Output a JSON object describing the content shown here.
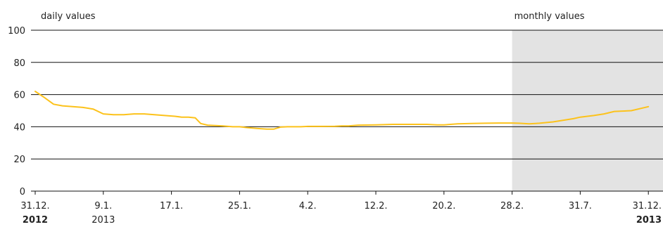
{
  "chart_data": {
    "type": "line",
    "title": "",
    "xlabel": "",
    "ylabel": "",
    "ylim": [
      0,
      100
    ],
    "y_ticks": [
      "0",
      "20",
      "40",
      "60",
      "80",
      "100"
    ],
    "x_ticks": [
      {
        "line1": "31.12.",
        "line2": "2012",
        "bold2": true
      },
      {
        "line1": "9.1.",
        "line2": "2013",
        "bold2": false
      },
      {
        "line1": "17.1.",
        "line2": "",
        "bold2": false
      },
      {
        "line1": "25.1.",
        "line2": "",
        "bold2": false
      },
      {
        "line1": "4.2.",
        "line2": "",
        "bold2": false
      },
      {
        "line1": "12.2.",
        "line2": "",
        "bold2": false
      },
      {
        "line1": "20.2.",
        "line2": "",
        "bold2": false
      },
      {
        "line1": "28.2.",
        "line2": "",
        "bold2": false
      },
      {
        "line1": "31.7.",
        "line2": "",
        "bold2": false
      },
      {
        "line1": "31.12.",
        "line2": "2013",
        "bold2": true
      }
    ],
    "regions": {
      "daily_label": "daily values",
      "monthly_label": "monthly values",
      "monthly_start_tick_index": 7,
      "monthly_shade_color": "#e3e3e3"
    },
    "grid": true,
    "legend": "none",
    "series": [
      {
        "color": "#fcc21b",
        "points": [
          [
            0.0,
            62
          ],
          [
            0.14,
            58
          ],
          [
            0.27,
            54
          ],
          [
            0.4,
            53
          ],
          [
            0.55,
            52.5
          ],
          [
            0.7,
            52
          ],
          [
            0.85,
            51
          ],
          [
            1.0,
            48
          ],
          [
            1.15,
            47.5
          ],
          [
            1.3,
            47.5
          ],
          [
            1.45,
            48
          ],
          [
            1.6,
            48
          ],
          [
            1.75,
            47.5
          ],
          [
            1.9,
            47
          ],
          [
            2.05,
            46.5
          ],
          [
            2.15,
            46
          ],
          [
            2.25,
            46
          ],
          [
            2.35,
            45.5
          ],
          [
            2.43,
            42
          ],
          [
            2.53,
            41
          ],
          [
            2.75,
            40.5
          ],
          [
            2.9,
            40
          ],
          [
            3.0,
            40
          ],
          [
            3.1,
            39.5
          ],
          [
            3.25,
            39
          ],
          [
            3.4,
            38.5
          ],
          [
            3.5,
            38.5
          ],
          [
            3.6,
            39.8
          ],
          [
            3.7,
            40
          ],
          [
            3.8,
            40
          ],
          [
            3.9,
            40
          ],
          [
            4.0,
            40.2
          ],
          [
            4.2,
            40.2
          ],
          [
            4.4,
            40.3
          ],
          [
            4.5,
            40.5
          ],
          [
            4.6,
            40.5
          ],
          [
            4.75,
            41
          ],
          [
            5.0,
            41.2
          ],
          [
            5.25,
            41.5
          ],
          [
            5.5,
            41.5
          ],
          [
            5.75,
            41.5
          ],
          [
            5.9,
            41.2
          ],
          [
            6.0,
            41.2
          ],
          [
            6.2,
            41.8
          ],
          [
            6.4,
            42
          ],
          [
            6.6,
            42.2
          ],
          [
            6.8,
            42.3
          ],
          [
            7.0,
            42.3
          ],
          [
            7.1,
            42.2
          ],
          [
            7.25,
            41.8
          ],
          [
            7.4,
            42.2
          ],
          [
            7.6,
            43
          ],
          [
            7.9,
            45
          ],
          [
            8.0,
            46
          ],
          [
            8.2,
            47
          ],
          [
            8.35,
            48
          ],
          [
            8.5,
            49.5
          ],
          [
            8.75,
            50
          ],
          [
            9.0,
            52.5
          ]
        ]
      }
    ]
  }
}
